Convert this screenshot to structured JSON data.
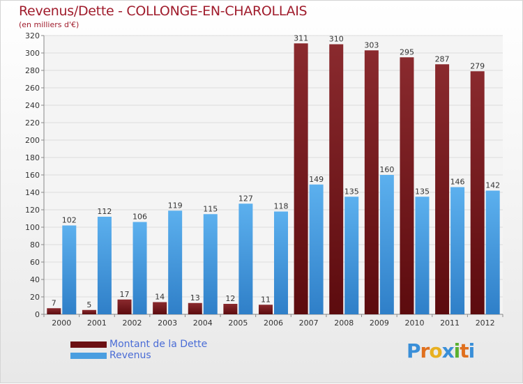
{
  "header": {
    "title": "Revenus/Dette - COLLONGE-EN-CHAROLLAIS",
    "subtitle": "(en milliers d'€)"
  },
  "chart_data": {
    "type": "bar",
    "categories": [
      "2000",
      "2001",
      "2002",
      "2003",
      "2004",
      "2005",
      "2006",
      "2007",
      "2008",
      "2009",
      "2010",
      "2011",
      "2012"
    ],
    "series": [
      {
        "name": "Montant de la Dette",
        "color": "#7a1e22",
        "values": [
          7,
          5,
          17,
          14,
          13,
          12,
          11,
          311,
          310,
          303,
          295,
          287,
          279
        ]
      },
      {
        "name": "Revenus",
        "color": "#4a9ee0",
        "values": [
          102,
          112,
          106,
          119,
          115,
          127,
          118,
          149,
          135,
          160,
          135,
          146,
          142
        ]
      }
    ],
    "ylim": [
      0,
      320
    ],
    "yticks": [
      0,
      20,
      40,
      60,
      80,
      100,
      120,
      140,
      160,
      180,
      200,
      220,
      240,
      260,
      280,
      300,
      320
    ],
    "grid": true
  },
  "legend": {
    "items": [
      {
        "label": "Montant de la Dette",
        "color": "#6b0f12"
      },
      {
        "label": "Revenus",
        "color": "#4a9ee0"
      }
    ]
  },
  "logo": {
    "letters": [
      "P",
      "r",
      "o",
      "x",
      "i",
      "t",
      "i"
    ],
    "colors": [
      "#3a8fd8",
      "#e0701e",
      "#e8b020",
      "#3a8fd8",
      "#5ab030",
      "#e0701e",
      "#3a8fd8"
    ]
  }
}
